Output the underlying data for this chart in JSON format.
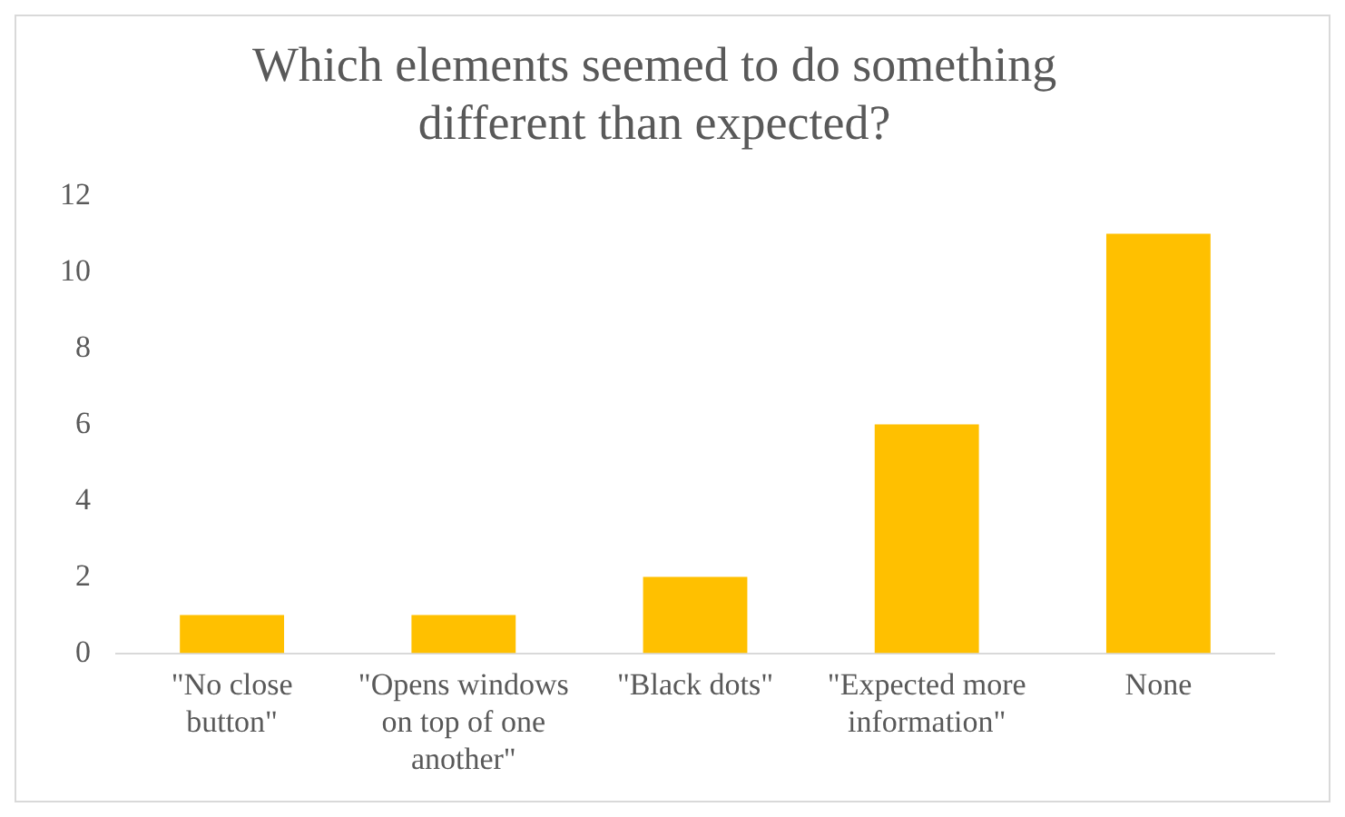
{
  "chart_data": {
    "type": "bar",
    "title": "Which elements seemed to do something different than expected?",
    "categories": [
      "\"No close button\"",
      "\"Opens windows on top of one another\"",
      "\"Black dots\"",
      "\"Expected more information\"",
      "None"
    ],
    "values": [
      1,
      1,
      2,
      6,
      11
    ],
    "color": "#ffc000",
    "ylim": [
      0,
      12
    ],
    "yticks": [
      0,
      2,
      4,
      6,
      8,
      10,
      12
    ],
    "grid": false,
    "legend": false
  }
}
